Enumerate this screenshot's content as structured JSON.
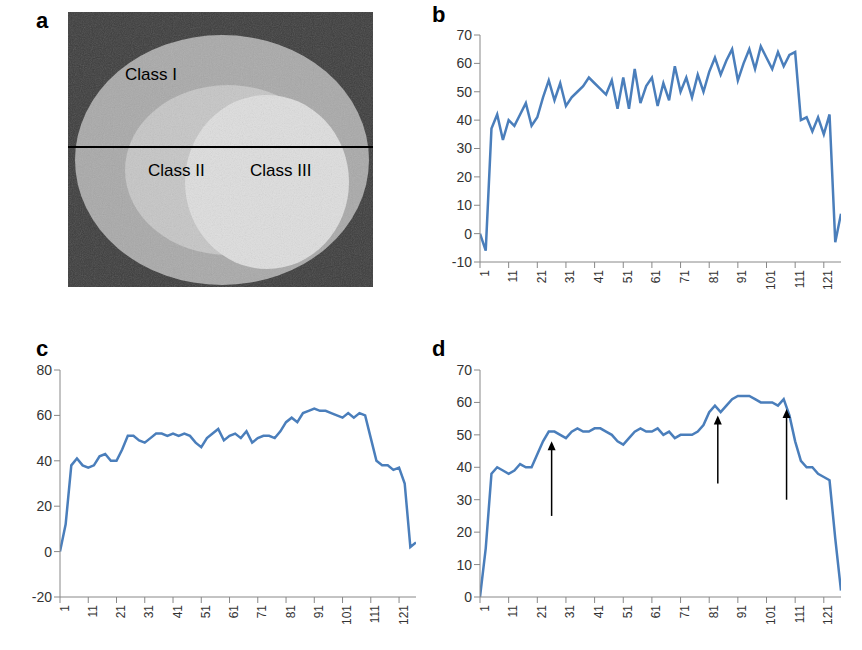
{
  "chart_data": [
    {
      "panel": "a",
      "type": "image",
      "labels": [
        "Class I",
        "Class II",
        "Class III"
      ]
    },
    {
      "panel": "b",
      "type": "line",
      "color": "#4a7ebb",
      "x": [
        1,
        3,
        5,
        7,
        9,
        11,
        13,
        15,
        17,
        19,
        21,
        23,
        25,
        27,
        29,
        31,
        33,
        35,
        37,
        39,
        41,
        43,
        45,
        47,
        49,
        51,
        53,
        55,
        57,
        59,
        61,
        63,
        65,
        67,
        69,
        71,
        73,
        75,
        77,
        79,
        81,
        83,
        85,
        87,
        89,
        91,
        93,
        95,
        97,
        99,
        101,
        103,
        105,
        107,
        109,
        111,
        113,
        115,
        117,
        119,
        121,
        123,
        125,
        127
      ],
      "values": [
        0,
        -6,
        37,
        42,
        33,
        40,
        38,
        42,
        46,
        38,
        41,
        48,
        54,
        47,
        53,
        45,
        48,
        50,
        52,
        55,
        53,
        51,
        49,
        54,
        44,
        55,
        44,
        58,
        46,
        52,
        55,
        45,
        53,
        47,
        59,
        50,
        55,
        48,
        56,
        50,
        57,
        62,
        56,
        61,
        65,
        54,
        60,
        65,
        58,
        66,
        62,
        58,
        64,
        59,
        63,
        64,
        40,
        41,
        36,
        41,
        35,
        42,
        -3,
        7
      ],
      "xlim": [
        1,
        127
      ],
      "xticks": [
        1,
        11,
        21,
        31,
        41,
        51,
        61,
        71,
        81,
        91,
        101,
        111,
        121
      ],
      "ylim": [
        -10,
        70
      ],
      "yticks": [
        -10,
        0,
        10,
        20,
        30,
        40,
        50,
        60,
        70
      ]
    },
    {
      "panel": "c",
      "type": "line",
      "color": "#4a7ebb",
      "x": [
        1,
        3,
        5,
        7,
        9,
        11,
        13,
        15,
        17,
        19,
        21,
        23,
        25,
        27,
        29,
        31,
        33,
        35,
        37,
        39,
        41,
        43,
        45,
        47,
        49,
        51,
        53,
        55,
        57,
        59,
        61,
        63,
        65,
        67,
        69,
        71,
        73,
        75,
        77,
        79,
        81,
        83,
        85,
        87,
        89,
        91,
        93,
        95,
        97,
        99,
        101,
        103,
        105,
        107,
        109,
        111,
        113,
        115,
        117,
        119,
        121,
        123,
        125,
        127
      ],
      "values": [
        0,
        12,
        38,
        41,
        38,
        37,
        38,
        42,
        43,
        40,
        40,
        45,
        51,
        51,
        49,
        48,
        50,
        52,
        52,
        51,
        52,
        51,
        52,
        51,
        48,
        46,
        50,
        52,
        54,
        49,
        51,
        52,
        50,
        53,
        48,
        50,
        51,
        51,
        50,
        53,
        57,
        59,
        57,
        61,
        62,
        63,
        62,
        62,
        61,
        60,
        59,
        61,
        59,
        61,
        60,
        50,
        40,
        38,
        38,
        36,
        37,
        30,
        2,
        4
      ],
      "xlim": [
        1,
        127
      ],
      "xticks": [
        1,
        11,
        21,
        31,
        41,
        51,
        61,
        71,
        81,
        91,
        101,
        111,
        121
      ],
      "ylim": [
        -20,
        80
      ],
      "yticks": [
        -20,
        0,
        20,
        40,
        60,
        80
      ]
    },
    {
      "panel": "d",
      "type": "line",
      "color": "#4a7ebb",
      "x": [
        1,
        3,
        5,
        7,
        9,
        11,
        13,
        15,
        17,
        19,
        21,
        23,
        25,
        27,
        29,
        31,
        33,
        35,
        37,
        39,
        41,
        43,
        45,
        47,
        49,
        51,
        53,
        55,
        57,
        59,
        61,
        63,
        65,
        67,
        69,
        71,
        73,
        75,
        77,
        79,
        81,
        83,
        85,
        87,
        89,
        91,
        93,
        95,
        97,
        99,
        101,
        103,
        105,
        107,
        109,
        111,
        113,
        115,
        117,
        119,
        121,
        123,
        125,
        127
      ],
      "values": [
        0,
        15,
        38,
        40,
        39,
        38,
        39,
        41,
        40,
        40,
        44,
        48,
        51,
        51,
        50,
        49,
        51,
        52,
        51,
        51,
        52,
        52,
        51,
        50,
        48,
        47,
        49,
        51,
        52,
        51,
        51,
        52,
        50,
        51,
        49,
        50,
        50,
        50,
        51,
        53,
        57,
        59,
        57,
        59,
        61,
        62,
        62,
        62,
        61,
        60,
        60,
        60,
        59,
        61,
        56,
        48,
        42,
        40,
        40,
        38,
        37,
        36,
        18,
        2
      ],
      "xlim": [
        1,
        127
      ],
      "xticks": [
        1,
        11,
        21,
        31,
        41,
        51,
        61,
        71,
        81,
        91,
        101,
        111,
        121
      ],
      "ylim": [
        0,
        70
      ],
      "yticks": [
        0,
        10,
        20,
        30,
        40,
        50,
        60,
        70
      ],
      "annotations": [
        {
          "x": 26,
          "y_from": 25,
          "y_to": 48
        },
        {
          "x": 84,
          "y_from": 35,
          "y_to": 56
        },
        {
          "x": 108,
          "y_from": 30,
          "y_to": 58
        }
      ]
    }
  ]
}
